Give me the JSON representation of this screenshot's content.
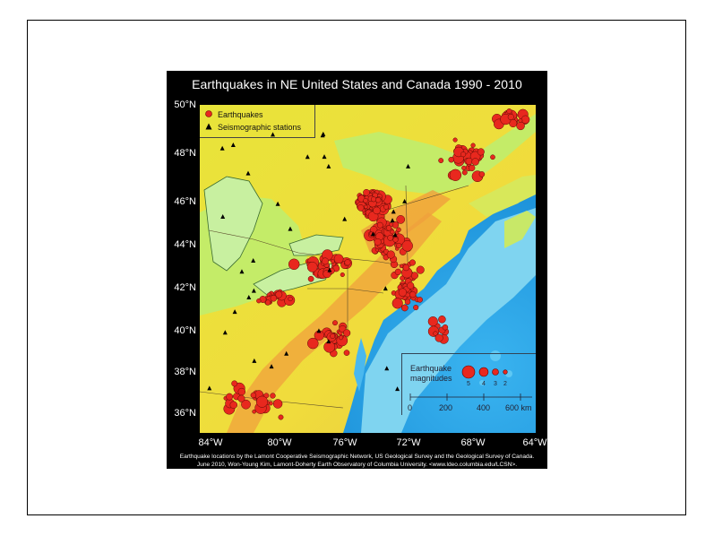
{
  "title": "Earthquakes in NE United States and Canada 1990 - 2010",
  "legend": {
    "earthquakes": "Earthquakes",
    "stations": "Seismographic stations"
  },
  "latitude_labels": [
    "50°N",
    "48°N",
    "46°N",
    "44°N",
    "42°N",
    "40°N",
    "38°N",
    "36°N"
  ],
  "longitude_labels": [
    "84°W",
    "80°W",
    "76°W",
    "72°W",
    "68°W",
    "64°W"
  ],
  "magnitude_legend": {
    "title_line1": "Earthquake",
    "title_line2": "magnitudes",
    "magnitudes": [
      "5",
      "4",
      "3",
      "2"
    ]
  },
  "scale_bar": {
    "ticks": [
      "0",
      "200",
      "400",
      "600 km"
    ]
  },
  "credits": {
    "line1": "Earthquake locations by the Lamont Cooperative Seismographic Network, US Geological Survey and the Geological Survey of Canada.",
    "line2": "June 2010, Won-Young Kim, Lamont-Doherty Earth Observatory of Columbia University. <www.ldeo.columbia.edu/LCSN>."
  },
  "colors": {
    "earthquake": "#e8281e",
    "ocean_deep": "#1e9ee6",
    "ocean_shelf": "#7fd4f0",
    "lowland": "#c4ec68",
    "upland": "#f0e62c",
    "highland": "#f0a03c"
  }
}
